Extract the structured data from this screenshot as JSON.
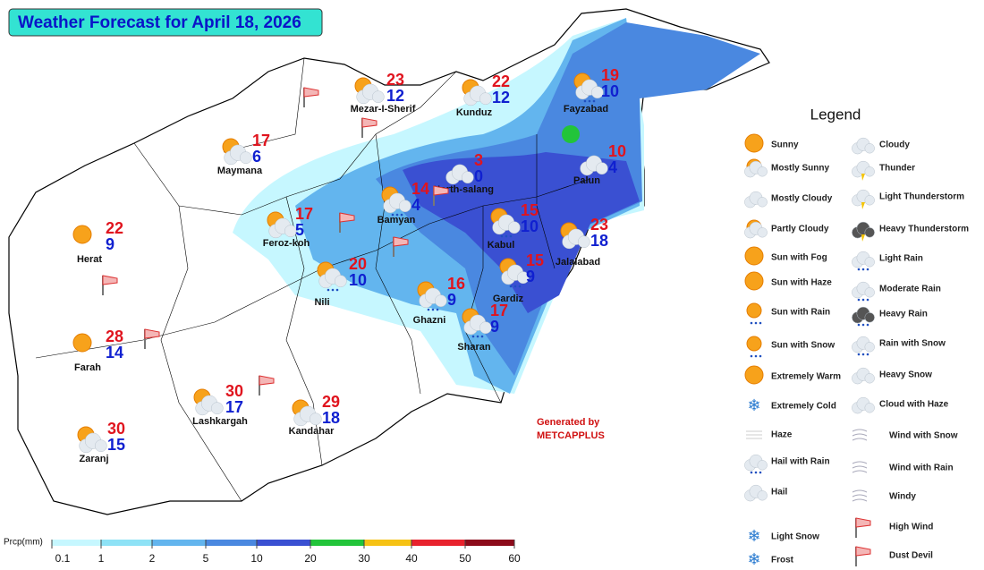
{
  "header": {
    "title": "Weather Forecast for April 18, 2026"
  },
  "cities": [
    {
      "name": "Mezar-I-Sherif",
      "max": 23,
      "min": 12
    },
    {
      "name": "Kunduz",
      "max": 22,
      "min": 12
    },
    {
      "name": "Fayzabad",
      "max": 19,
      "min": 10
    },
    {
      "name": "Maymana",
      "max": 17,
      "min": 6
    },
    {
      "name": "North-salang",
      "max": 3,
      "min": 0
    },
    {
      "name": "Palun",
      "max": 10,
      "min": 4
    },
    {
      "name": "Bamyan",
      "max": 14,
      "min": 4
    },
    {
      "name": "Feroz-koh",
      "max": 17,
      "min": 5
    },
    {
      "name": "Kabul",
      "max": 15,
      "min": 10
    },
    {
      "name": "Jalalabad",
      "max": 23,
      "min": 18
    },
    {
      "name": "Herat",
      "max": 22,
      "min": 9
    },
    {
      "name": "Nili",
      "max": 20,
      "min": 10
    },
    {
      "name": "Ghazni",
      "max": 16,
      "min": 9
    },
    {
      "name": "Gardiz",
      "max": 15,
      "min": 9
    },
    {
      "name": "Sharan",
      "max": 17,
      "min": 9
    },
    {
      "name": "Farah",
      "max": 28,
      "min": 14
    },
    {
      "name": "Lashkargah",
      "max": 30,
      "min": 17
    },
    {
      "name": "Kandahar",
      "max": 29,
      "min": 18
    },
    {
      "name": "Zaranj",
      "max": 30,
      "min": 15
    }
  ],
  "credit": {
    "line1": "Generated by",
    "line2": "METCAPPLUS"
  },
  "legend": {
    "title": "Legend",
    "items": [
      "Sunny",
      "Mostly Sunny",
      "Mostly Cloudy",
      "Partly Cloudy",
      "Sun with Fog",
      "Sun with Haze",
      "Sun with Rain",
      "Sun with Snow",
      "Extremely Warm",
      "Extremely Cold",
      "Haze",
      "Hail with Rain",
      "Hail",
      "Light Snow",
      "Frost",
      "Cloudy",
      "Thunder",
      "Light Thunderstorm",
      "Heavy Thunderstorm",
      "Light Rain",
      "Moderate Rain",
      "Heavy Rain",
      "Rain with Snow",
      "Heavy Snow",
      "Cloud with Haze",
      "Wind with Snow",
      "Wind with Rain",
      "Windy",
      "High Wind",
      "Dust Devil"
    ]
  },
  "colorbar": {
    "label": "Prcp(mm)",
    "ticks": [
      0.1,
      1,
      2,
      5,
      10,
      20,
      30,
      40,
      50,
      60
    ],
    "colors": [
      "#c6f7ff",
      "#8ee2f6",
      "#63b5ee",
      "#4a88e0",
      "#3a50d2",
      "#22c43a",
      "#f6c214",
      "#e8222d",
      "#8c0a1a"
    ]
  }
}
